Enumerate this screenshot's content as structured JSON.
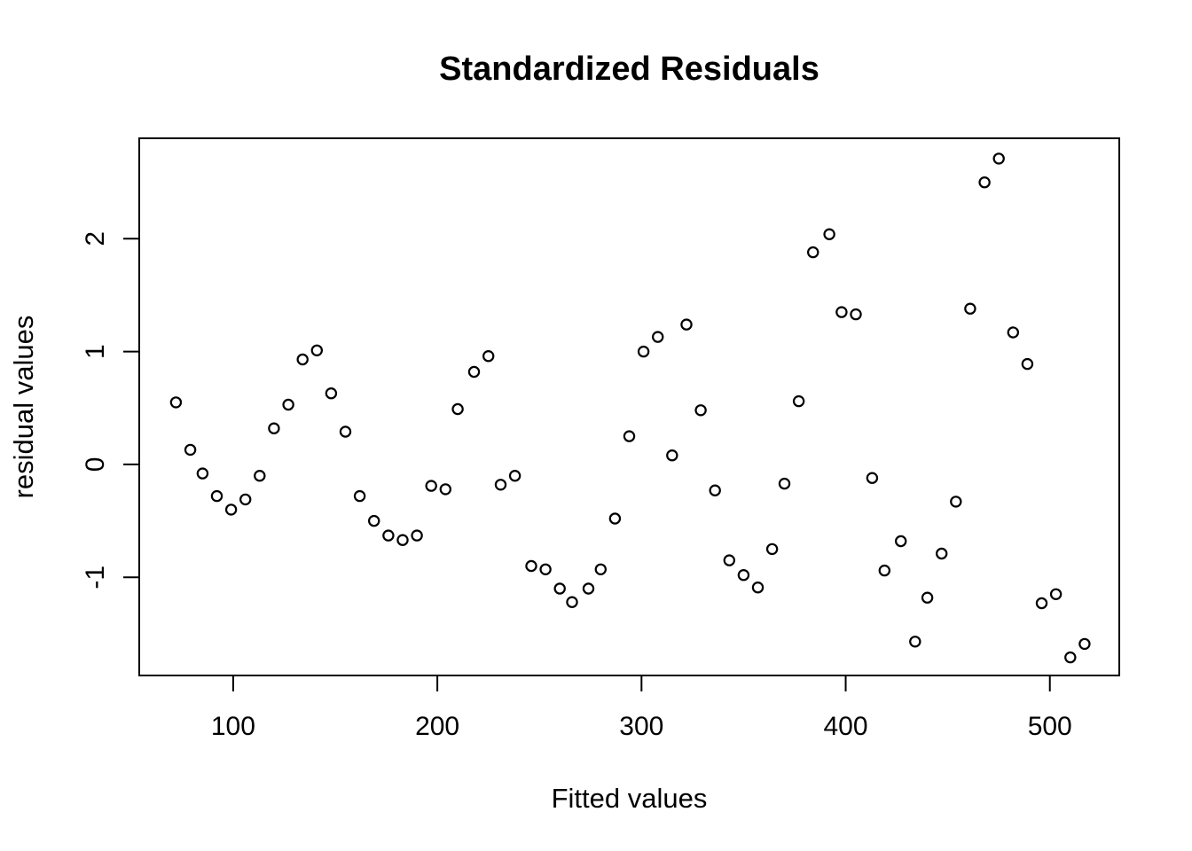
{
  "chart_data": {
    "type": "scatter",
    "title": "Standardized Residuals",
    "xlabel": "Fitted values",
    "ylabel": "residual values",
    "xlim": [
      54,
      534
    ],
    "ylim": [
      -1.87,
      2.89
    ],
    "x_ticks": [
      "100",
      "200",
      "300",
      "400",
      "500"
    ],
    "x_tick_values": [
      100,
      200,
      300,
      400,
      500
    ],
    "y_ticks": [
      "-1",
      "0",
      "1",
      "2"
    ],
    "y_tick_values": [
      -1,
      0,
      1,
      2
    ],
    "grid": false,
    "legend": false,
    "marker": "open-circle",
    "marker_color": "#000000",
    "axis_color": "#000000",
    "background": "#ffffff",
    "points": [
      [
        72,
        0.55
      ],
      [
        79,
        0.13
      ],
      [
        85,
        -0.08
      ],
      [
        92,
        -0.28
      ],
      [
        99,
        -0.4
      ],
      [
        106,
        -0.31
      ],
      [
        113,
        -0.1
      ],
      [
        120,
        0.32
      ],
      [
        127,
        0.53
      ],
      [
        134,
        0.93
      ],
      [
        141,
        1.01
      ],
      [
        148,
        0.63
      ],
      [
        155,
        0.29
      ],
      [
        162,
        -0.28
      ],
      [
        169,
        -0.5
      ],
      [
        176,
        -0.63
      ],
      [
        183,
        -0.67
      ],
      [
        190,
        -0.63
      ],
      [
        197,
        -0.19
      ],
      [
        204,
        -0.22
      ],
      [
        210,
        0.49
      ],
      [
        218,
        0.82
      ],
      [
        225,
        0.96
      ],
      [
        231,
        -0.18
      ],
      [
        238,
        -0.1
      ],
      [
        246,
        -0.9
      ],
      [
        253,
        -0.93
      ],
      [
        260,
        -1.1
      ],
      [
        266,
        -1.22
      ],
      [
        274,
        -1.1
      ],
      [
        280,
        -0.93
      ],
      [
        287,
        -0.48
      ],
      [
        294,
        0.25
      ],
      [
        301,
        1.0
      ],
      [
        308,
        1.13
      ],
      [
        315,
        0.08
      ],
      [
        322,
        1.24
      ],
      [
        329,
        0.48
      ],
      [
        336,
        -0.23
      ],
      [
        343,
        -0.85
      ],
      [
        350,
        -0.98
      ],
      [
        357,
        -1.09
      ],
      [
        364,
        -0.75
      ],
      [
        370,
        -0.17
      ],
      [
        377,
        0.56
      ],
      [
        384,
        1.88
      ],
      [
        392,
        2.04
      ],
      [
        398,
        1.35
      ],
      [
        405,
        1.33
      ],
      [
        413,
        -0.12
      ],
      [
        419,
        -0.94
      ],
      [
        427,
        -0.68
      ],
      [
        434,
        -1.57
      ],
      [
        440,
        -1.18
      ],
      [
        447,
        -0.79
      ],
      [
        454,
        -0.33
      ],
      [
        461,
        1.38
      ],
      [
        468,
        2.5
      ],
      [
        475,
        2.71
      ],
      [
        482,
        1.17
      ],
      [
        489,
        0.89
      ],
      [
        496,
        -1.23
      ],
      [
        503,
        -1.15
      ],
      [
        510,
        -1.71
      ],
      [
        517,
        -1.59
      ]
    ]
  }
}
